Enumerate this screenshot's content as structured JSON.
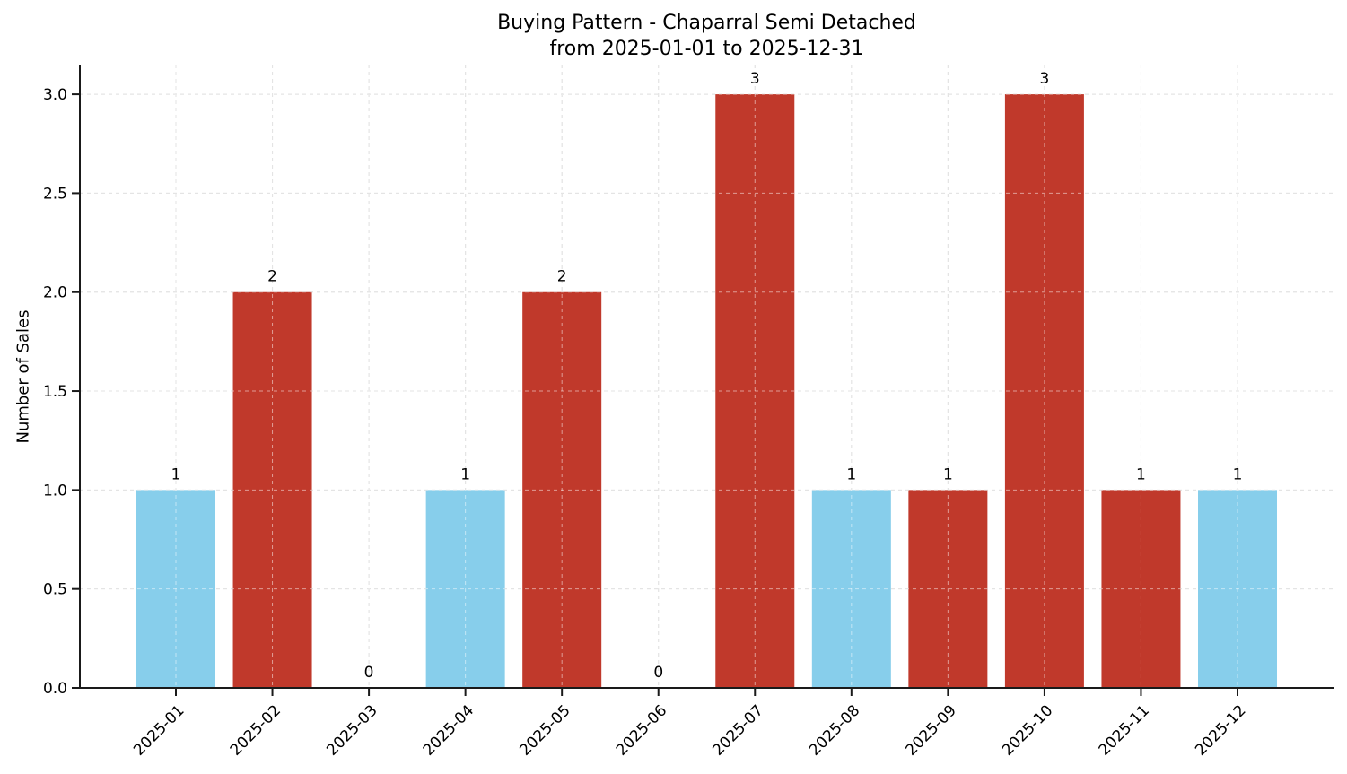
{
  "title": {
    "line1": "Buying Pattern - Chaparral Semi Detached",
    "line2": "from 2025-01-01 to 2025-12-31"
  },
  "axes": {
    "ylabel": "Number of Sales"
  },
  "chart_data": {
    "type": "bar",
    "title": "Buying Pattern - Chaparral Semi Detached from 2025-01-01 to 2025-12-31",
    "xlabel": "",
    "ylabel": "Number of Sales",
    "categories": [
      "2025-01",
      "2025-02",
      "2025-03",
      "2025-04",
      "2025-05",
      "2025-06",
      "2025-07",
      "2025-08",
      "2025-09",
      "2025-10",
      "2025-11",
      "2025-12"
    ],
    "values": [
      1,
      2,
      0,
      1,
      2,
      0,
      3,
      1,
      1,
      3,
      1,
      1
    ],
    "value_labels": [
      "1",
      "2",
      "0",
      "1",
      "2",
      "0",
      "3",
      "1",
      "1",
      "3",
      "1",
      "1"
    ],
    "bar_colors": [
      "#87CEEB",
      "#C0392B",
      null,
      "#87CEEB",
      "#C0392B",
      null,
      "#C0392B",
      "#87CEEB",
      "#C0392B",
      "#C0392B",
      "#C0392B",
      "#87CEEB"
    ],
    "yticks": [
      0,
      0.5,
      1,
      1.5,
      2,
      2.5,
      3
    ],
    "ytick_labels": [
      "0.0",
      "0.5",
      "1.0",
      "1.5",
      "2.0",
      "2.5",
      "3.0"
    ],
    "ylim": [
      0,
      3.15
    ],
    "grid": true,
    "grid_style": "dashed",
    "legend": null
  },
  "colors": {
    "bar_blue": "#87CEEB",
    "bar_red": "#C0392B",
    "grid": "#c8c8c8",
    "grid_over_bars": "#ffffff",
    "axis": "#1a1a1a",
    "text": "#000000",
    "background": "#ffffff"
  }
}
